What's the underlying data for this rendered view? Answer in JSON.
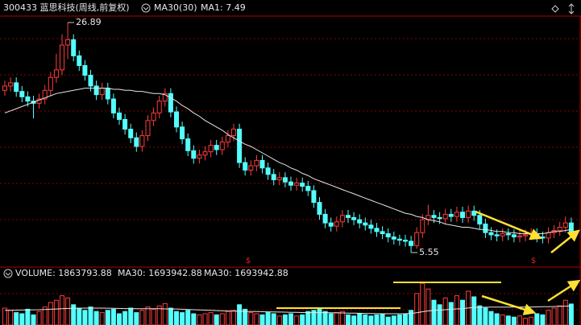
{
  "chart_data": {
    "type": "candlestick",
    "title": "300433 蓝思科技(周线,前复权)",
    "indicator_labels": [
      "MA30(30)",
      "MA1: 7.49"
    ],
    "volume_labels": [
      "VOLUME: 1863793.88",
      "MA30: 1693942.88",
      "MA30: 1693942.88"
    ],
    "up_color": "#ff3c3c",
    "down_color": "#54ffff",
    "ma_color": "#e6e6e6",
    "ylim": [
      5.1,
      27.6
    ],
    "volume_ylim": [
      0,
      4000000
    ],
    "max_label_index": 11,
    "min_label_index": 71,
    "open": [
      20.6,
      21.0,
      21.3,
      20.5,
      20.0,
      19.6,
      19.4,
      19.8,
      20.6,
      21.8,
      22.5,
      24.8,
      25.3,
      23.8,
      22.9,
      22.0,
      21.0,
      20.2,
      20.8,
      19.8,
      18.5,
      17.9,
      17.0,
      16.2,
      15.4,
      16.4,
      17.8,
      18.5,
      19.6,
      20.3,
      18.6,
      17.2,
      16.1,
      15.0,
      14.3,
      14.6,
      14.9,
      15.5,
      15.1,
      15.8,
      16.4,
      17.0,
      13.9,
      13.2,
      13.6,
      14.1,
      13.4,
      12.8,
      12.3,
      12.5,
      12.1,
      11.8,
      12.0,
      11.7,
      11.3,
      10.2,
      9.1,
      8.3,
      8.0,
      8.4,
      9.0,
      8.8,
      8.6,
      8.3,
      8.1,
      7.8,
      7.5,
      7.3,
      7.0,
      6.8,
      6.7,
      6.6,
      6.2,
      7.4,
      8.6,
      9.0,
      8.8,
      8.7,
      9.1,
      8.9,
      9.3,
      8.8,
      9.4,
      9.0,
      8.2,
      7.4,
      7.2,
      7.1,
      7.3,
      7.2,
      7.0,
      7.1,
      7.2,
      7.3,
      7.0,
      6.9,
      7.4,
      7.6,
      7.9,
      8.3
    ],
    "high": [
      21.5,
      21.8,
      21.8,
      21.0,
      20.5,
      20.1,
      20.3,
      21.1,
      22.3,
      24.0,
      25.8,
      26.89,
      25.8,
      24.3,
      23.4,
      22.5,
      21.5,
      21.3,
      21.3,
      20.3,
      19.0,
      18.4,
      17.5,
      16.7,
      16.9,
      18.3,
      19.0,
      20.1,
      20.8,
      20.8,
      19.1,
      17.7,
      16.6,
      15.5,
      15.1,
      15.4,
      16.0,
      16.0,
      16.3,
      16.9,
      17.5,
      17.5,
      14.4,
      14.1,
      14.6,
      14.6,
      13.9,
      13.3,
      13.0,
      13.0,
      12.6,
      12.5,
      12.5,
      12.2,
      11.8,
      10.7,
      9.6,
      8.8,
      8.9,
      9.5,
      9.5,
      9.3,
      9.1,
      8.8,
      8.6,
      8.3,
      8.0,
      7.8,
      7.5,
      7.2,
      7.2,
      7.1,
      7.9,
      9.1,
      10.0,
      9.5,
      9.3,
      9.6,
      9.6,
      9.8,
      9.8,
      9.9,
      9.9,
      9.5,
      8.7,
      7.9,
      7.7,
      7.8,
      7.8,
      7.7,
      7.6,
      7.7,
      7.8,
      7.8,
      7.5,
      7.9,
      8.1,
      8.4,
      8.9,
      8.8
    ],
    "low": [
      20.1,
      20.5,
      20.0,
      19.5,
      19.1,
      18.0,
      18.9,
      19.3,
      20.1,
      21.3,
      22.0,
      23.5,
      23.3,
      22.4,
      21.5,
      20.5,
      19.7,
      19.7,
      19.3,
      18.0,
      17.4,
      16.5,
      15.7,
      14.9,
      14.9,
      15.9,
      17.3,
      18.0,
      19.1,
      18.1,
      16.7,
      15.6,
      14.5,
      13.8,
      13.8,
      14.1,
      14.4,
      14.6,
      14.6,
      15.3,
      15.9,
      13.4,
      12.7,
      12.7,
      13.1,
      12.9,
      12.3,
      11.8,
      11.8,
      11.6,
      11.3,
      11.3,
      11.2,
      10.8,
      9.7,
      8.6,
      7.8,
      7.5,
      7.5,
      7.9,
      8.3,
      8.1,
      7.8,
      7.6,
      7.3,
      7.0,
      6.8,
      6.5,
      6.3,
      6.2,
      6.1,
      5.55,
      5.9,
      6.9,
      8.1,
      8.3,
      8.2,
      8.2,
      8.4,
      8.4,
      8.3,
      8.3,
      8.5,
      7.7,
      6.9,
      6.7,
      6.6,
      6.6,
      6.7,
      6.5,
      6.5,
      6.6,
      6.7,
      6.5,
      6.4,
      6.4,
      6.9,
      7.1,
      7.4,
      7.0
    ],
    "close": [
      21.0,
      21.3,
      20.5,
      20.0,
      19.6,
      19.4,
      19.8,
      20.6,
      21.8,
      22.5,
      24.8,
      25.3,
      23.8,
      22.9,
      22.0,
      21.0,
      20.2,
      20.8,
      19.8,
      18.5,
      17.9,
      17.0,
      16.2,
      15.4,
      16.4,
      17.8,
      18.5,
      19.6,
      20.3,
      18.6,
      17.2,
      16.1,
      15.0,
      14.3,
      14.6,
      14.9,
      15.5,
      15.1,
      15.8,
      16.4,
      17.0,
      13.9,
      13.2,
      13.6,
      14.1,
      13.4,
      12.8,
      12.3,
      12.5,
      12.1,
      11.8,
      12.0,
      11.7,
      11.3,
      10.2,
      9.1,
      8.3,
      8.0,
      8.4,
      9.0,
      8.8,
      8.6,
      8.3,
      8.1,
      7.8,
      7.5,
      7.3,
      7.0,
      6.8,
      6.7,
      6.6,
      6.2,
      7.4,
      8.6,
      9.0,
      8.8,
      8.7,
      9.1,
      8.9,
      9.3,
      8.8,
      9.4,
      9.0,
      8.2,
      7.4,
      7.2,
      7.1,
      7.3,
      7.2,
      7.0,
      7.1,
      7.2,
      7.3,
      7.0,
      6.9,
      7.4,
      7.6,
      7.9,
      8.3,
      7.49
    ],
    "ma30": [
      18.5,
      18.7,
      18.9,
      19.1,
      19.3,
      19.5,
      19.7,
      19.9,
      20.1,
      20.3,
      20.4,
      20.5,
      20.6,
      20.7,
      20.8,
      20.8,
      20.8,
      20.8,
      20.8,
      20.7,
      20.7,
      20.6,
      20.6,
      20.5,
      20.5,
      20.4,
      20.3,
      20.3,
      20.2,
      19.9,
      19.6,
      19.2,
      18.9,
      18.5,
      18.2,
      17.8,
      17.5,
      17.2,
      16.9,
      16.5,
      16.2,
      15.9,
      15.6,
      15.4,
      15.1,
      14.8,
      14.5,
      14.2,
      13.9,
      13.7,
      13.4,
      13.2,
      12.9,
      12.7,
      12.4,
      12.2,
      12.0,
      11.8,
      11.6,
      11.4,
      11.2,
      11.0,
      10.8,
      10.6,
      10.4,
      10.2,
      10.0,
      9.8,
      9.6,
      9.4,
      9.2,
      9.1,
      8.9,
      8.8,
      8.6,
      8.5,
      8.4,
      8.2,
      8.1,
      8.0,
      7.9,
      7.9,
      7.8,
      7.7,
      7.7,
      7.6,
      7.5,
      7.5,
      7.4,
      7.4,
      7.3,
      7.3,
      7.3,
      7.3,
      7.3,
      7.4,
      7.5,
      7.5,
      7.6,
      7.7
    ],
    "volume": [
      1500000,
      1300000,
      1100000,
      1000000,
      1400000,
      900000,
      1200000,
      1600000,
      2000000,
      2200000,
      2600000,
      2400000,
      1800000,
      1500000,
      1300000,
      1600000,
      1200000,
      1100000,
      1300000,
      1400000,
      1000000,
      1200000,
      1500000,
      1100000,
      1300000,
      1600000,
      1400000,
      1700000,
      1900000,
      1500000,
      1200000,
      1100000,
      1300000,
      1000000,
      900000,
      1000000,
      1100000,
      900000,
      1000000,
      1200000,
      1300000,
      1800000,
      1400000,
      1100000,
      1000000,
      900000,
      1100000,
      1000000,
      800000,
      900000,
      1000000,
      800000,
      900000,
      1200000,
      1300000,
      1500000,
      1200000,
      1000000,
      1100000,
      1200000,
      900000,
      800000,
      1000000,
      900000,
      800000,
      900000,
      1000000,
      700000,
      800000,
      900000,
      1000000,
      1300000,
      2800000,
      3700000,
      3200000,
      2200000,
      1800000,
      2400000,
      2000000,
      2600000,
      2200000,
      3000000,
      2500000,
      1700000,
      1500000,
      1200000,
      1000000,
      900000,
      800000,
      700000,
      800000,
      600000,
      700000,
      1000000,
      900000,
      1300000,
      1500000,
      1700000,
      2200000,
      1863793.88
    ],
    "volume_ma30": [
      1300000,
      1310000,
      1320000,
      1330000,
      1340000,
      1350000,
      1360000,
      1380000,
      1400000,
      1420000,
      1450000,
      1470000,
      1480000,
      1490000,
      1500000,
      1500000,
      1500000,
      1500000,
      1490000,
      1480000,
      1470000,
      1460000,
      1460000,
      1450000,
      1450000,
      1450000,
      1440000,
      1440000,
      1430000,
      1430000,
      1420000,
      1400000,
      1380000,
      1360000,
      1340000,
      1320000,
      1300000,
      1280000,
      1260000,
      1240000,
      1230000,
      1220000,
      1210000,
      1200000,
      1190000,
      1180000,
      1170000,
      1160000,
      1150000,
      1140000,
      1130000,
      1120000,
      1110000,
      1100000,
      1100000,
      1100000,
      1100000,
      1090000,
      1080000,
      1070000,
      1060000,
      1050000,
      1040000,
      1030000,
      1020000,
      1010000,
      1000000,
      1000000,
      1000000,
      1000000,
      1010000,
      1030000,
      1090000,
      1180000,
      1250000,
      1290000,
      1320000,
      1360000,
      1390000,
      1430000,
      1460000,
      1510000,
      1550000,
      1570000,
      1580000,
      1590000,
      1590000,
      1590000,
      1590000,
      1590000,
      1600000,
      1600000,
      1600000,
      1610000,
      1620000,
      1630000,
      1640000,
      1660000,
      1670000,
      1693942.88
    ]
  }
}
